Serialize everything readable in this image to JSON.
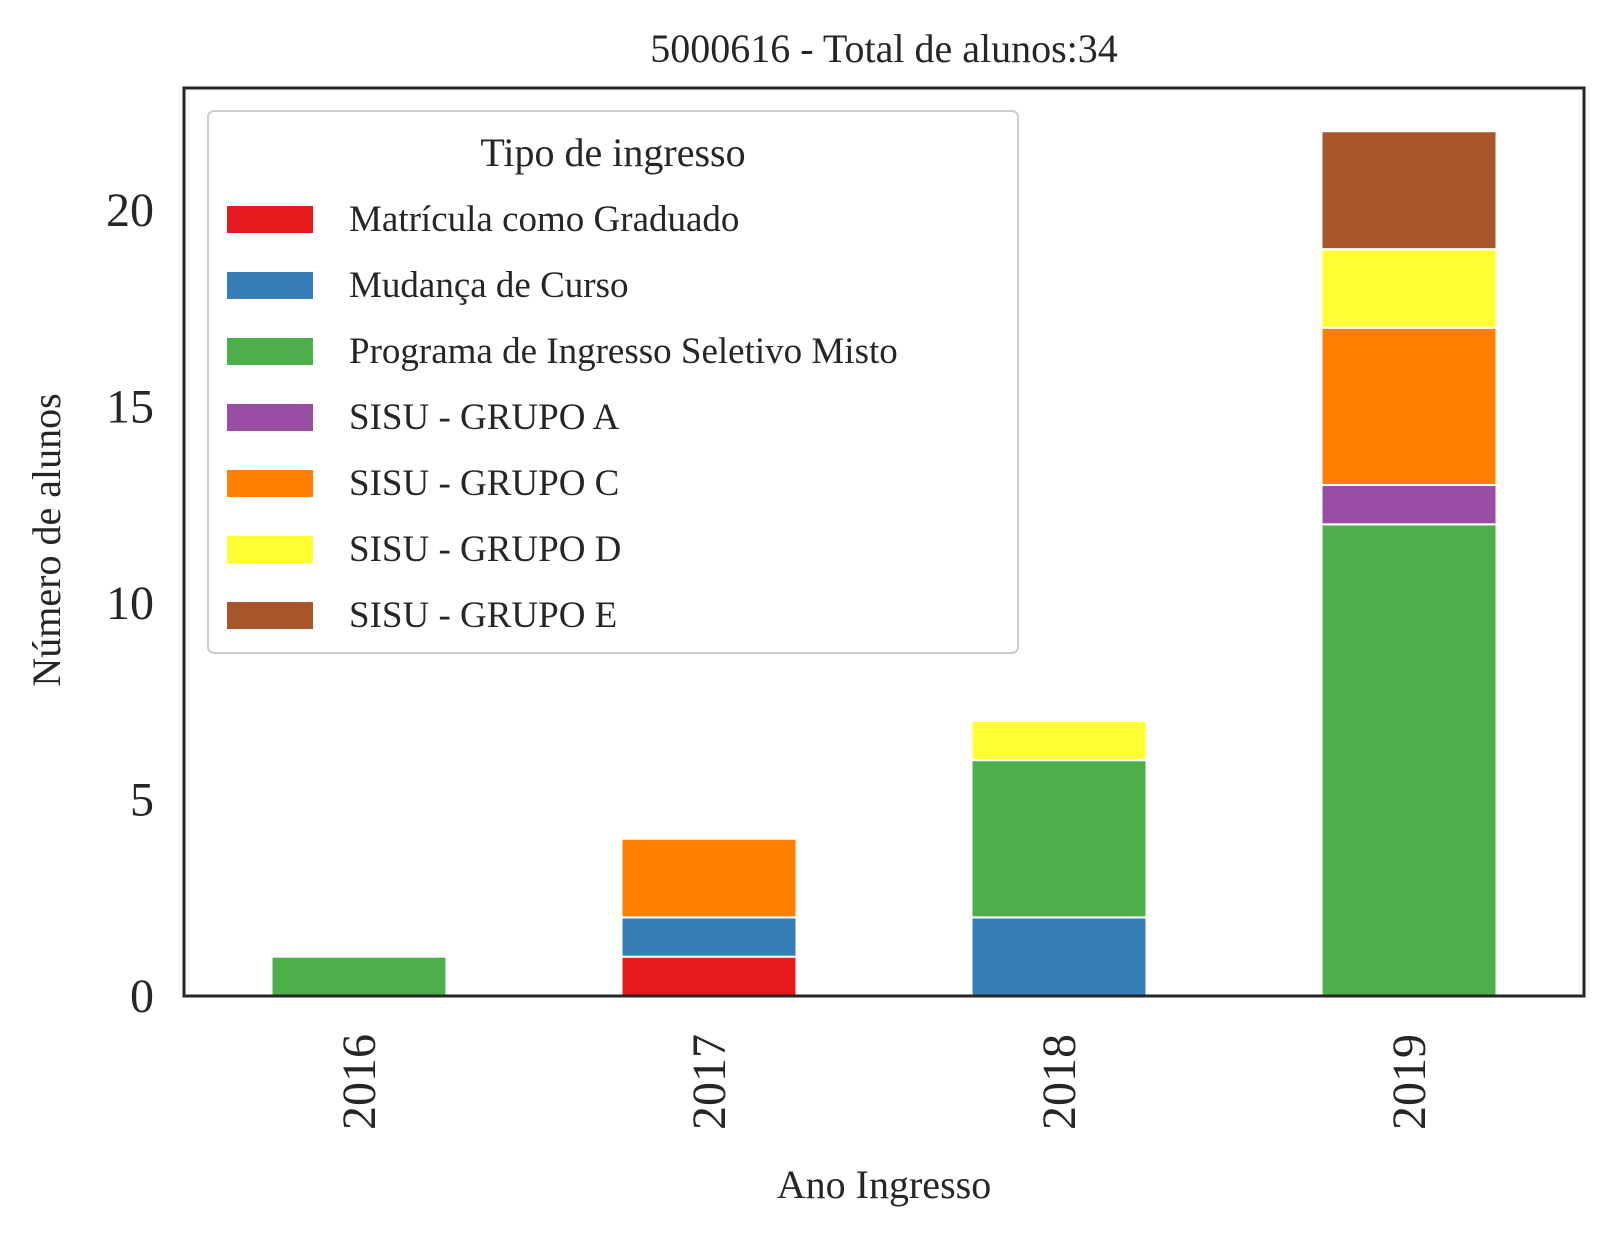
{
  "chart_data": {
    "type": "bar",
    "stacked": true,
    "title": "5000616 - Total de alunos:34",
    "xlabel": "Ano Ingresso",
    "ylabel": "Número de alunos",
    "categories": [
      "2016",
      "2017",
      "2018",
      "2019"
    ],
    "ylim": [
      0,
      23.1
    ],
    "yticks": [
      0,
      5,
      10,
      15,
      20
    ],
    "grid": false,
    "legend": {
      "title": "Tipo de ingresso",
      "placement": "top-left"
    },
    "series": [
      {
        "name": "Matrícula como Graduado",
        "color": "#e41a1c",
        "values": [
          0,
          1,
          0,
          0
        ]
      },
      {
        "name": "Mudança de Curso",
        "color": "#377eb8",
        "values": [
          0,
          1,
          2,
          0
        ]
      },
      {
        "name": "Programa de Ingresso Seletivo Misto",
        "color": "#4daf4a",
        "values": [
          1,
          0,
          4,
          12
        ]
      },
      {
        "name": "SISU - GRUPO A",
        "color": "#984ea3",
        "values": [
          0,
          0,
          0,
          1
        ]
      },
      {
        "name": "SISU - GRUPO C",
        "color": "#ff7f00",
        "values": [
          0,
          2,
          0,
          4
        ]
      },
      {
        "name": "SISU - GRUPO D",
        "color": "#ffff33",
        "values": [
          0,
          0,
          1,
          2
        ]
      },
      {
        "name": "SISU - GRUPO E",
        "color": "#a65628",
        "values": [
          0,
          0,
          0,
          3
        ]
      }
    ]
  }
}
